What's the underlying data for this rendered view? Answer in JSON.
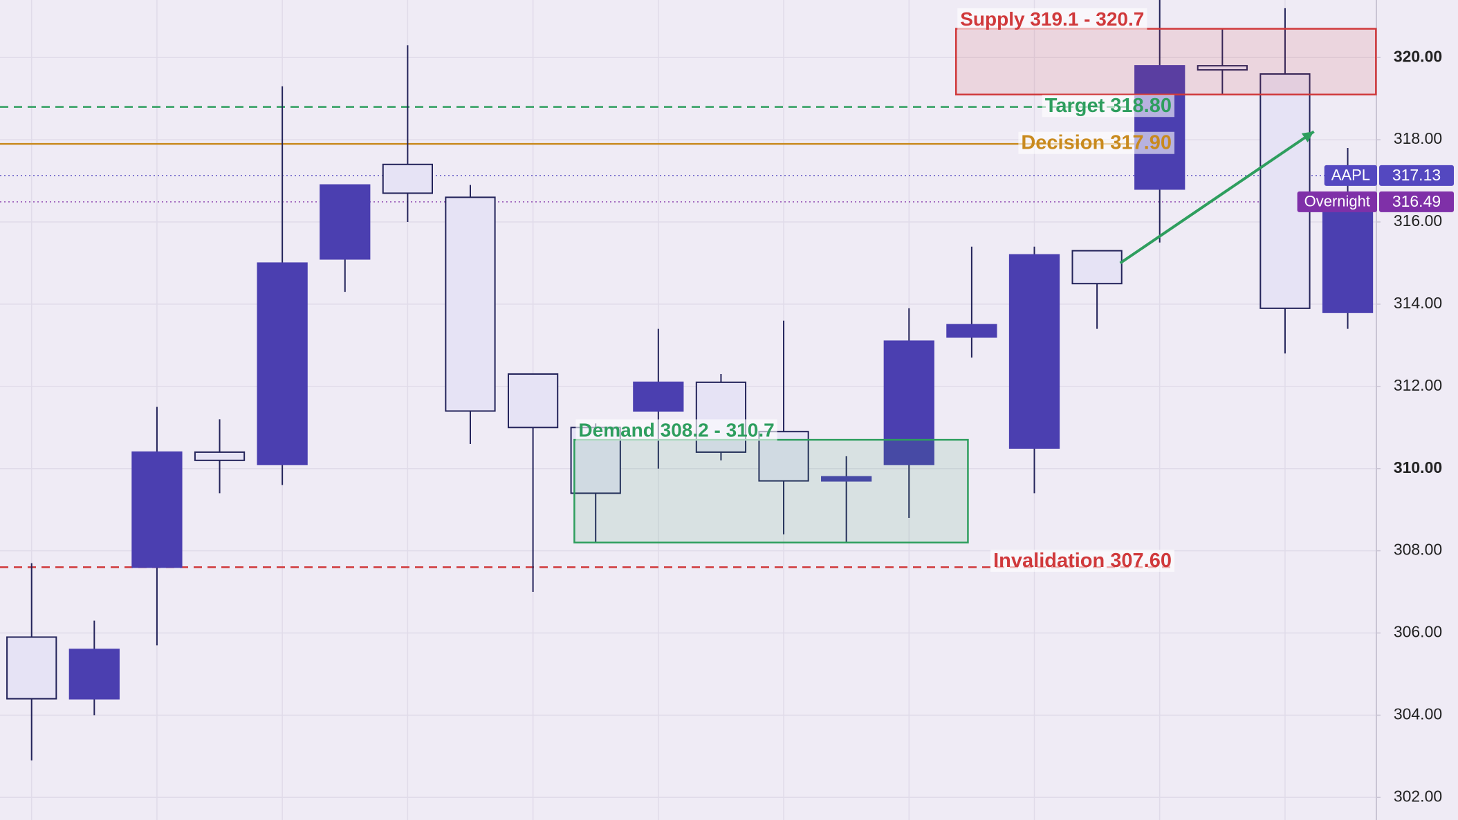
{
  "chart_data": {
    "type": "candlestick",
    "categories": [
      null,
      null,
      null,
      null,
      null,
      null,
      null,
      null,
      null,
      null,
      null,
      null,
      null,
      null,
      null,
      null,
      null,
      null,
      null,
      null,
      null,
      null
    ],
    "open": [
      305.9,
      304.4,
      307.6,
      310.4,
      310.1,
      315.1,
      317.4,
      316.6,
      312.3,
      311.0,
      311.4,
      312.1,
      310.9,
      309.7,
      310.1,
      313.2,
      310.5,
      315.3,
      316.8,
      319.8,
      319.6,
      313.8
    ],
    "high": [
      307.7,
      306.3,
      311.5,
      311.2,
      319.3,
      316.9,
      320.3,
      316.9,
      312.3,
      311.1,
      313.4,
      312.3,
      313.6,
      310.3,
      313.9,
      315.4,
      315.4,
      315.3,
      321.5,
      320.7,
      321.2,
      317.8
    ],
    "low": [
      302.9,
      304.0,
      305.7,
      309.4,
      309.6,
      314.3,
      316.0,
      310.6,
      307.0,
      308.2,
      310.0,
      310.2,
      308.4,
      308.2,
      308.8,
      312.7,
      309.4,
      313.4,
      315.5,
      319.1,
      312.8,
      313.4
    ],
    "close": [
      304.4,
      305.6,
      310.4,
      310.2,
      315.0,
      316.9,
      316.7,
      311.4,
      311.0,
      309.4,
      312.1,
      310.4,
      309.7,
      309.8,
      313.1,
      313.5,
      315.2,
      314.5,
      319.8,
      319.7,
      313.9,
      316.5
    ],
    "up_color": "#4b3fb0",
    "down_color": "#e6e3f5",
    "ylim": [
      301.45,
      321.4
    ],
    "yticks": [
      {
        "value": 302,
        "label": "302.00"
      },
      {
        "value": 304,
        "label": "304.00"
      },
      {
        "value": 306,
        "label": "306.00"
      },
      {
        "value": 308,
        "label": "308.00"
      },
      {
        "value": 310,
        "label": "310.00"
      },
      {
        "value": 312,
        "label": "312.00"
      },
      {
        "value": 314,
        "label": "314.00"
      },
      {
        "value": 316,
        "label": "316.00"
      },
      {
        "value": 318,
        "label": "318.00"
      },
      {
        "value": 320,
        "label": "320.00"
      }
    ],
    "grid": true,
    "levels": [
      {
        "label": "Target 318.80",
        "value": 318.8,
        "color": "#2e9e5e",
        "style": "dashed"
      },
      {
        "label": "Decision 317.90",
        "value": 317.9,
        "color": "#c98a1e",
        "style": "solid"
      },
      {
        "label": "Invalidation 307.60",
        "value": 307.6,
        "color": "#d0393b",
        "style": "dashed"
      }
    ],
    "zones": [
      {
        "label": "Supply 319.1 - 320.7",
        "low": 319.1,
        "high": 320.7,
        "x_range": [
          14.75,
          21.45
        ],
        "color": "#d0393b"
      },
      {
        "label": "Demand 308.2 - 310.7",
        "low": 308.2,
        "high": 310.7,
        "x_range": [
          8.66,
          14.94
        ],
        "color": "#2e9e5e"
      }
    ],
    "price_tags": [
      {
        "name": "AAPL",
        "value": 317.13,
        "color": "#5448c0"
      },
      {
        "name": "Overnight",
        "value": 316.49,
        "color": "#7f30a8"
      }
    ],
    "arrow": {
      "x": [
        17.37,
        20.46
      ],
      "y": [
        315.0,
        318.2
      ],
      "color": "#2e9e5e"
    }
  }
}
